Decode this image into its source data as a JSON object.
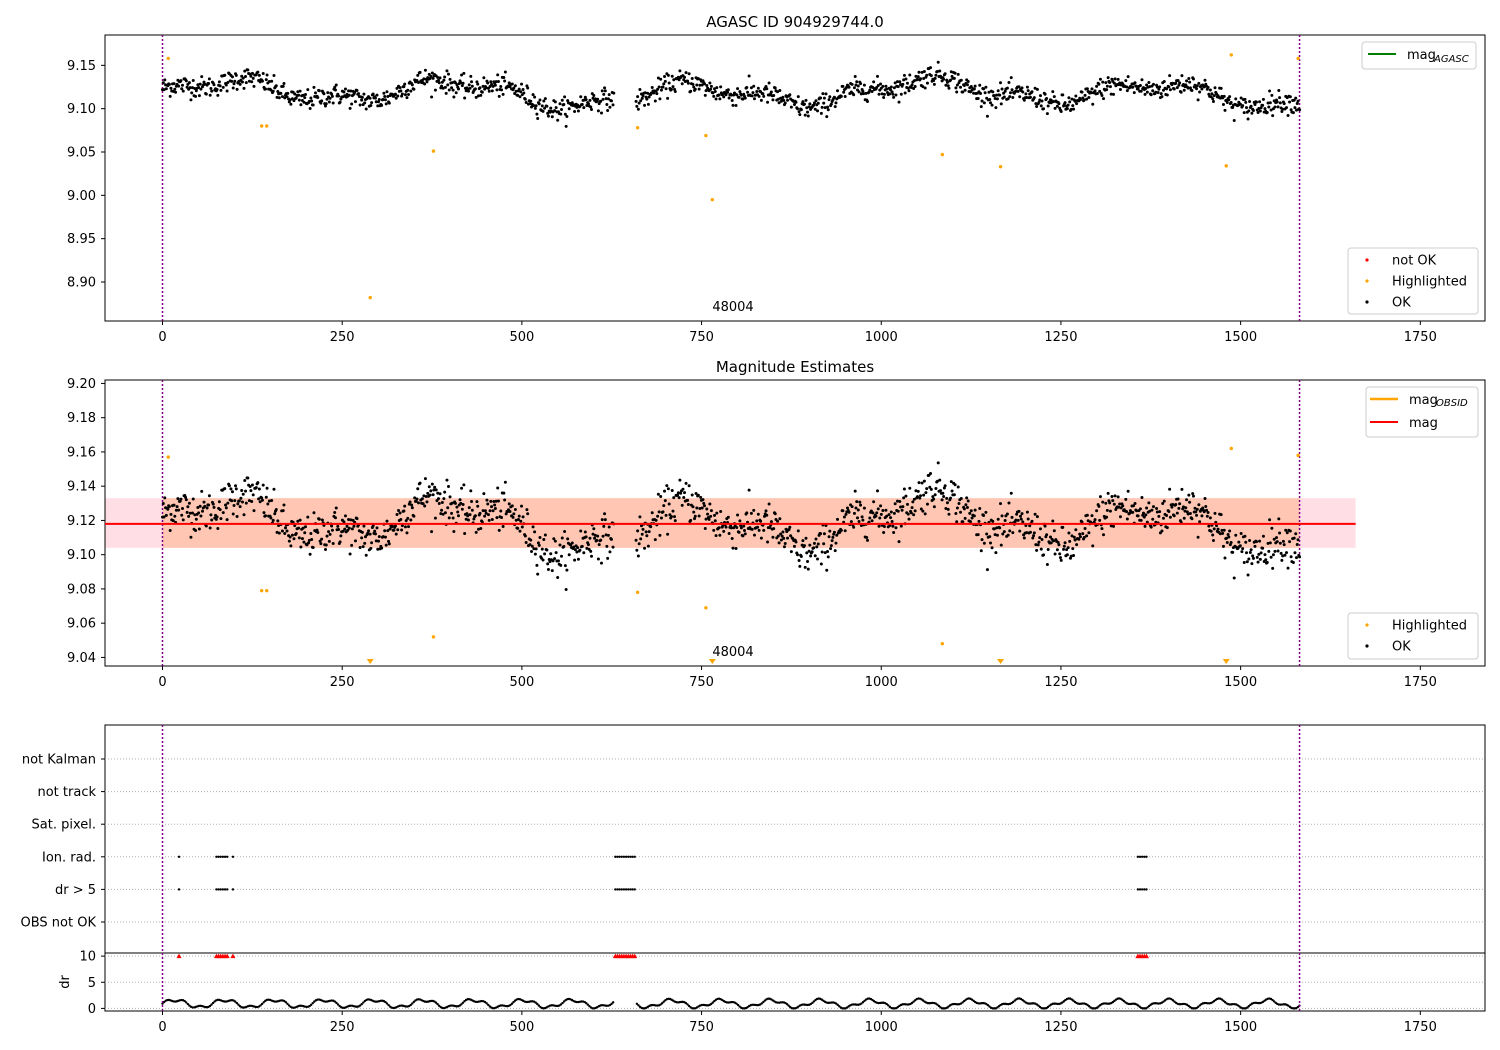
{
  "figure": {
    "title": "AGASC ID 904929744.0",
    "colors": {
      "ok": "#000000",
      "highlighted": "#ffa500",
      "not_ok": "#ff0000",
      "mag_agasc": "#008000",
      "mag_obsid": "#ffa500",
      "mag": "#ff0000",
      "band": "#ffb38a",
      "band_outer": "#ffc0cb",
      "obs_boundary": "#800080"
    }
  },
  "chart_data": [
    {
      "type": "scatter",
      "title": "AGASC ID 904929744.0",
      "xlim": [
        -80,
        1840
      ],
      "ylim": [
        8.855,
        9.185
      ],
      "xticks": [
        0,
        250,
        500,
        750,
        1000,
        1250,
        1500,
        1750
      ],
      "yticks": [
        8.9,
        8.95,
        9.0,
        9.05,
        9.1,
        9.15
      ],
      "ytick_labels": [
        "8.90",
        "8.95",
        "9.00",
        "9.05",
        "9.10",
        "9.15"
      ],
      "obs_boundaries": [
        0,
        1582
      ],
      "obs_label": "48004",
      "line_legend": [
        {
          "name": "mag",
          "sub": "AGASC",
          "color_key": "mag_agasc"
        }
      ],
      "marker_legend": [
        "not OK",
        "Highlighted",
        "OK"
      ],
      "highlighted_points": [
        [
          8,
          9.158
        ],
        [
          138,
          9.08
        ],
        [
          145,
          9.08
        ],
        [
          289,
          8.882
        ],
        [
          377,
          9.051
        ],
        [
          661,
          9.078
        ],
        [
          756,
          9.069
        ],
        [
          765,
          8.995
        ],
        [
          1085,
          9.047
        ],
        [
          1166,
          9.033
        ],
        [
          1480,
          9.034
        ],
        [
          1487,
          9.162
        ],
        [
          1580,
          9.158
        ]
      ],
      "ok_series": {
        "x_range": [
          0,
          1582
        ],
        "count": 1480,
        "baseline": 9.118
      }
    },
    {
      "type": "scatter",
      "title": "Magnitude Estimates",
      "xlim": [
        -80,
        1840
      ],
      "ylim": [
        9.035,
        9.202
      ],
      "xticks": [
        0,
        250,
        500,
        750,
        1000,
        1250,
        1500,
        1750
      ],
      "yticks": [
        9.04,
        9.06,
        9.08,
        9.1,
        9.12,
        9.14,
        9.16,
        9.18,
        9.2
      ],
      "ytick_labels": [
        "9.04",
        "9.06",
        "9.08",
        "9.10",
        "9.12",
        "9.14",
        "9.16",
        "9.18",
        "9.20"
      ],
      "obs_boundaries": [
        0,
        1582
      ],
      "obs_label": "48004",
      "mag_line": 9.118,
      "band": {
        "x": [
          -80,
          1660
        ],
        "y": [
          9.104,
          9.133
        ]
      },
      "line_legend": [
        {
          "name": "mag",
          "sub": "OBSID",
          "color_key": "mag_obsid"
        },
        {
          "name": "mag",
          "sub": "",
          "color_key": "mag"
        }
      ],
      "marker_legend": [
        "Highlighted",
        "OK"
      ],
      "highlighted_points": [
        [
          8,
          9.157
        ],
        [
          138,
          9.079
        ],
        [
          145,
          9.079
        ],
        [
          377,
          9.052
        ],
        [
          661,
          9.078
        ],
        [
          756,
          9.069
        ],
        [
          1085,
          9.048
        ],
        [
          1487,
          9.162
        ],
        [
          1580,
          9.158
        ]
      ],
      "out_of_range_markers": [
        289,
        765,
        1166,
        1480
      ],
      "ok_series": {
        "x_range": [
          0,
          1582
        ],
        "count": 1480,
        "baseline": 9.118
      }
    },
    {
      "type": "scatter",
      "xlim": [
        -80,
        1840
      ],
      "xticks": [
        0,
        250,
        500,
        750,
        1000,
        1250,
        1500,
        1750
      ],
      "flag_categories": [
        "not Kalman",
        "not track",
        "Sat. pixel.",
        "Ion. rad.",
        "dr > 5",
        "OBS not OK"
      ],
      "flag_points": {
        "Ion. rad.": [
          [
            23,
            23
          ],
          [
            75,
            90
          ],
          [
            98,
            98
          ],
          [
            630,
            657
          ],
          [
            1357,
            1369
          ]
        ],
        "dr > 5": [
          [
            23,
            23
          ],
          [
            75,
            90
          ],
          [
            98,
            98
          ],
          [
            630,
            657
          ],
          [
            1357,
            1369
          ]
        ]
      },
      "dr_ylabel": "dr",
      "dr_ylim": [
        -0.5,
        10.6
      ],
      "dr_yticks": [
        0,
        5,
        10
      ],
      "dr_clipped_points": [
        [
          23,
          23
        ],
        [
          75,
          90
        ],
        [
          98,
          98
        ],
        [
          630,
          657
        ],
        [
          1357,
          1369
        ]
      ],
      "dr_clip_value": 10,
      "obs_boundaries": [
        0,
        1582
      ]
    }
  ]
}
